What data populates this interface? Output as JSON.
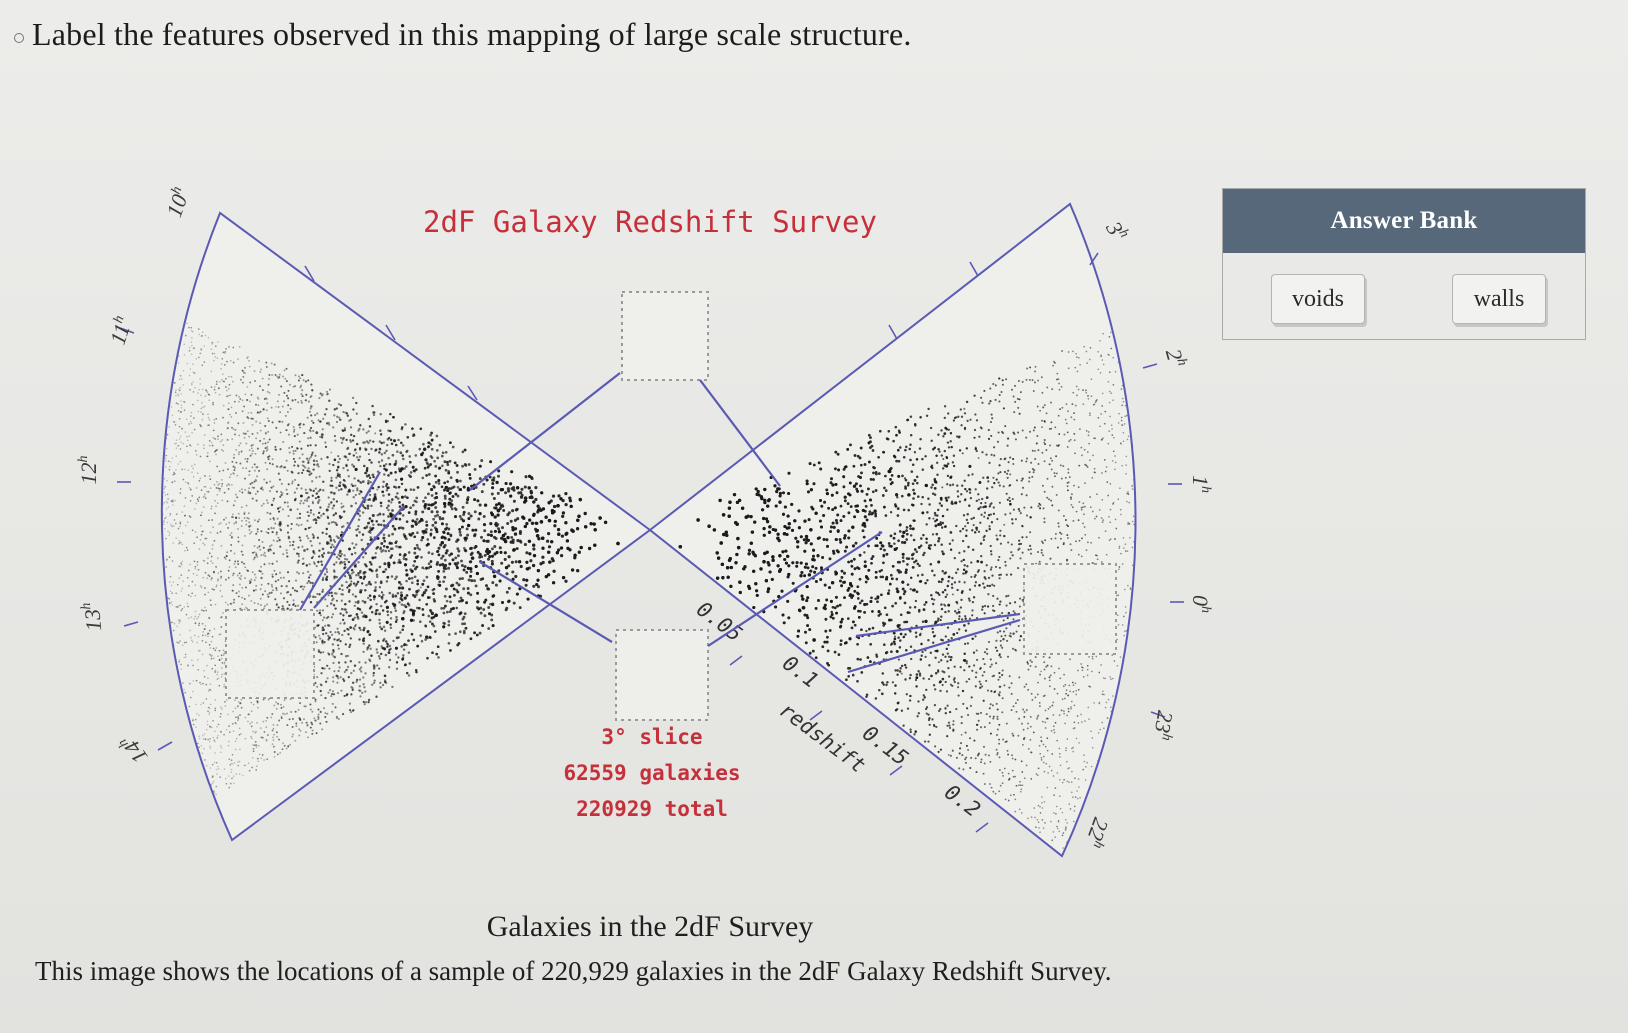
{
  "question": "Label the features observed in this mapping of large scale structure.",
  "figure": {
    "title": "2dF Galaxy Redshift Survey",
    "ra_left": [
      "10",
      "11",
      "12",
      "13",
      "14"
    ],
    "ra_right": [
      "3",
      "2",
      "1",
      "0",
      "23",
      "22"
    ],
    "ra_hour_suffix": "h",
    "redshift_labels": [
      "0.05",
      "0.1",
      "0.15",
      "0.2"
    ],
    "redshift_axis_label": "redshift",
    "info": {
      "slice": "3° slice",
      "galaxies": "62559 galaxies",
      "total": "220929 total"
    }
  },
  "caption": {
    "title": "Galaxies in the 2dF Survey",
    "description": "This image shows the locations of a sample of 220,929 galaxies in the 2dF Galaxy Redshift Survey."
  },
  "answer_bank": {
    "header": "Answer Bank",
    "items": [
      "voids",
      "walls"
    ]
  },
  "colors": {
    "wedge_outline": "#5a5ab4",
    "title": "#c5303a",
    "bank_header": "#56687a"
  }
}
